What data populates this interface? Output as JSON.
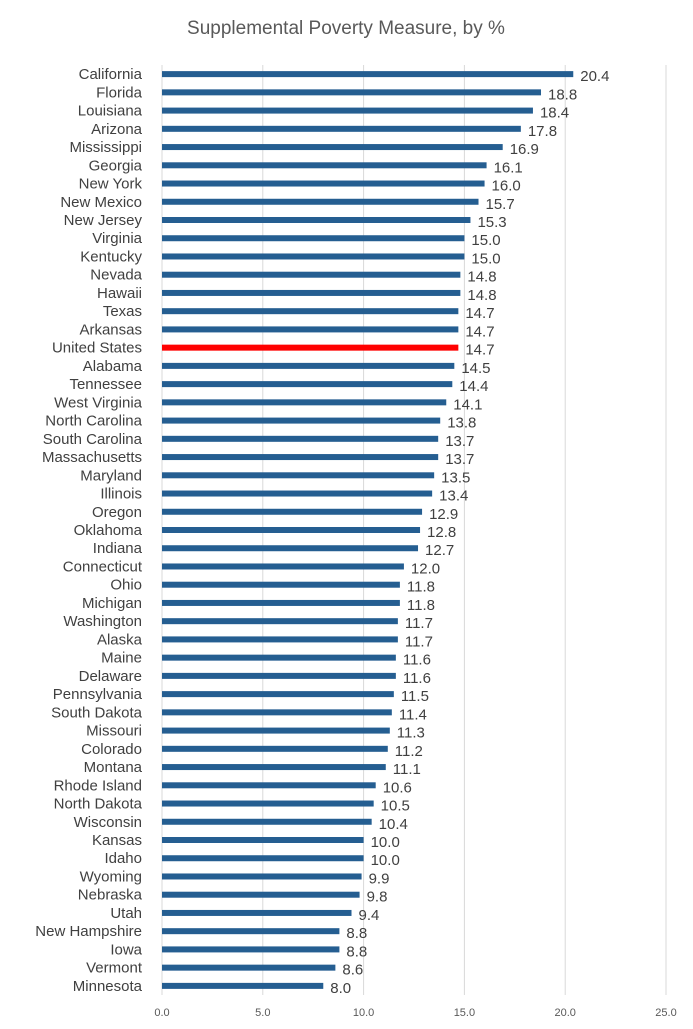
{
  "chart_data": {
    "type": "bar",
    "orientation": "horizontal",
    "title": "Supplemental Poverty Measure, by %",
    "xlabel": "",
    "ylabel": "",
    "xlim": [
      0,
      25
    ],
    "ticks": [
      "0.0",
      "5.0",
      "10.0",
      "15.0",
      "20.0",
      "25.0"
    ],
    "tick_values": [
      0,
      5,
      10,
      15,
      20,
      25
    ],
    "grid": true,
    "legend": "none",
    "colors": {
      "default": "#255e91",
      "highlight": "#ff0000"
    },
    "highlight_category": "United States",
    "categories": [
      "California",
      "Florida",
      "Louisiana",
      "Arizona",
      "Mississippi",
      "Georgia",
      "New York",
      "New Mexico",
      "New Jersey",
      "Virginia",
      "Kentucky",
      "Nevada",
      "Hawaii",
      "Texas",
      "Arkansas",
      "United States",
      "Alabama",
      "Tennessee",
      "West Virginia",
      "North Carolina",
      "South Carolina",
      "Massachusetts",
      "Maryland",
      "Illinois",
      "Oregon",
      "Oklahoma",
      "Indiana",
      "Connecticut",
      "Ohio",
      "Michigan",
      "Washington",
      "Alaska",
      "Maine",
      "Delaware",
      "Pennsylvania",
      "South Dakota",
      "Missouri",
      "Colorado",
      "Montana",
      "Rhode Island",
      "North Dakota",
      "Wisconsin",
      "Kansas",
      "Idaho",
      "Wyoming",
      "Nebraska",
      "Utah",
      "New Hampshire",
      "Iowa",
      "Vermont",
      "Minnesota"
    ],
    "values": [
      20.4,
      18.8,
      18.4,
      17.8,
      16.9,
      16.1,
      16.0,
      15.7,
      15.3,
      15.0,
      15.0,
      14.8,
      14.8,
      14.7,
      14.7,
      14.7,
      14.5,
      14.4,
      14.1,
      13.8,
      13.7,
      13.7,
      13.5,
      13.4,
      12.9,
      12.8,
      12.7,
      12.0,
      11.8,
      11.8,
      11.7,
      11.7,
      11.6,
      11.6,
      11.5,
      11.4,
      11.3,
      11.2,
      11.1,
      10.6,
      10.5,
      10.4,
      10.0,
      10.0,
      9.9,
      9.8,
      9.4,
      8.8,
      8.8,
      8.6,
      8.0
    ],
    "value_labels": [
      "20.4",
      "18.8",
      "18.4",
      "17.8",
      "16.9",
      "16.1",
      "16.0",
      "15.7",
      "15.3",
      "15.0",
      "15.0",
      "14.8",
      "14.8",
      "14.7",
      "14.7",
      "14.7",
      "14.5",
      "14.4",
      "14.1",
      "13.8",
      "13.7",
      "13.7",
      "13.5",
      "13.4",
      "12.9",
      "12.8",
      "12.7",
      "12.0",
      "11.8",
      "11.8",
      "11.7",
      "11.7",
      "11.6",
      "11.6",
      "11.5",
      "11.4",
      "11.3",
      "11.2",
      "11.1",
      "10.6",
      "10.5",
      "10.4",
      "10.0",
      "10.0",
      "9.9",
      "9.8",
      "9.4",
      "8.8",
      "8.8",
      "8.6",
      "8.0"
    ]
  }
}
